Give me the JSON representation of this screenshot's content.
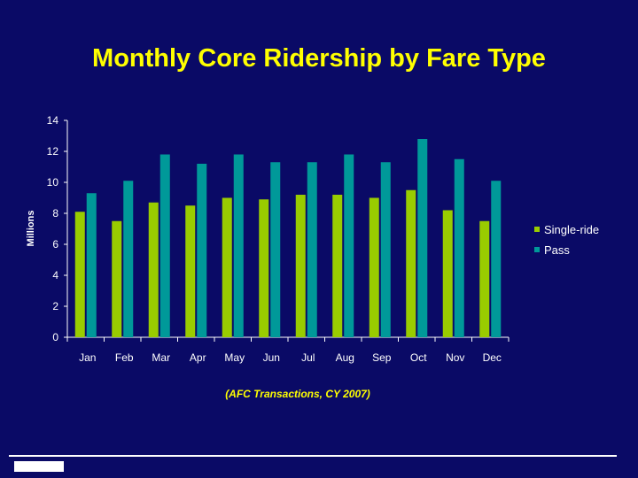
{
  "title": "Monthly Core Ridership by Fare Type",
  "subtitle": "(AFC Transactions, CY 2007)",
  "colors": {
    "background": "#0a0a66",
    "title": "#ffff00",
    "single_ride": "#99cc00",
    "pass": "#009999"
  },
  "chart_data": {
    "type": "bar",
    "ylabel": "Millions",
    "xlabel": "",
    "ylim": [
      0,
      14
    ],
    "yticks": [
      0,
      2,
      4,
      6,
      8,
      10,
      12,
      14
    ],
    "grid": false,
    "legend_position": "right",
    "categories": [
      "Jan",
      "Feb",
      "Mar",
      "Apr",
      "May",
      "Jun",
      "Jul",
      "Aug",
      "Sep",
      "Oct",
      "Nov",
      "Dec"
    ],
    "series": [
      {
        "name": "Single-ride",
        "color": "#99cc00",
        "values": [
          8.1,
          7.5,
          8.7,
          8.5,
          9.0,
          8.9,
          9.2,
          9.2,
          9.0,
          9.5,
          8.2,
          7.5
        ]
      },
      {
        "name": "Pass",
        "color": "#009999",
        "values": [
          9.3,
          10.1,
          11.8,
          11.2,
          11.8,
          11.3,
          11.3,
          11.8,
          11.3,
          12.8,
          11.5,
          10.1
        ]
      }
    ]
  }
}
